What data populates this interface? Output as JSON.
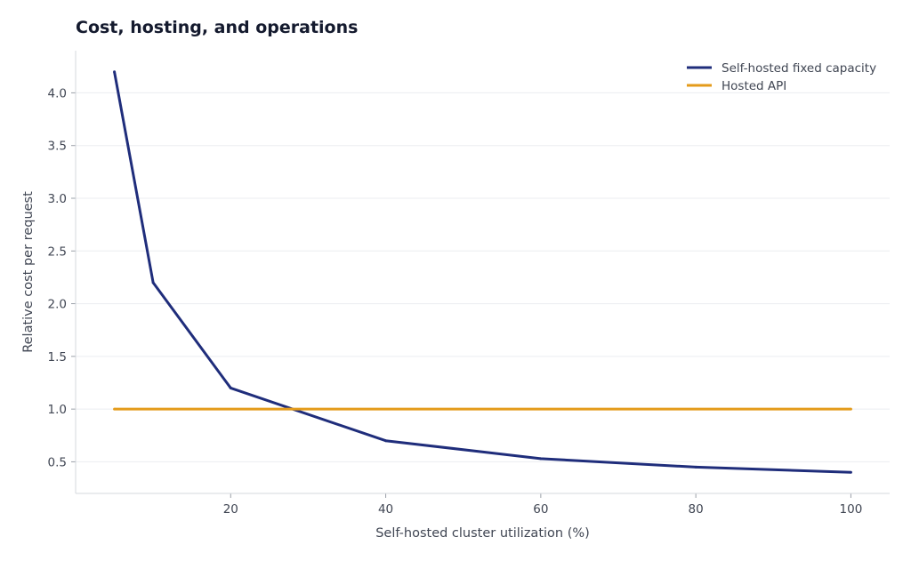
{
  "chart_data": {
    "type": "line",
    "title": "Cost, hosting, and operations",
    "xlabel": "Self-hosted cluster utilization (%)",
    "ylabel": "Relative cost per request",
    "xlim": [
      0,
      105
    ],
    "ylim": [
      0.2,
      4.4
    ],
    "xticks": [
      20,
      40,
      60,
      80,
      100
    ],
    "yticks": [
      0.5,
      1.0,
      1.5,
      2.0,
      2.5,
      3.0,
      3.5,
      4.0
    ],
    "grid": "horizontal",
    "legend_position": "top-right",
    "series": [
      {
        "name": "Self-hosted fixed capacity",
        "color": "#1f2d7b",
        "x": [
          5,
          10,
          20,
          40,
          60,
          80,
          100
        ],
        "y": [
          4.2,
          2.2,
          1.2,
          0.7,
          0.53,
          0.45,
          0.4
        ]
      },
      {
        "name": "Hosted API",
        "color": "#e49b1b",
        "x": [
          5,
          100
        ],
        "y": [
          1.0,
          1.0
        ]
      }
    ]
  }
}
